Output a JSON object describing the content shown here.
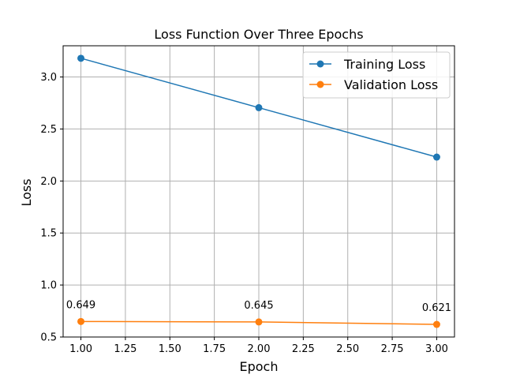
{
  "chart_data": {
    "type": "line",
    "title": "Loss Function Over Three Epochs",
    "xlabel": "Epoch",
    "ylabel": "Loss",
    "x": [
      1,
      2,
      3
    ],
    "xlim": [
      0.9,
      3.1
    ],
    "ylim": [
      0.5,
      3.3
    ],
    "xticks": [
      1.0,
      1.25,
      1.5,
      1.75,
      2.0,
      2.25,
      2.5,
      2.75,
      3.0
    ],
    "xtick_labels": [
      "1.00",
      "1.25",
      "1.50",
      "1.75",
      "2.00",
      "2.25",
      "2.50",
      "2.75",
      "3.00"
    ],
    "yticks": [
      0.5,
      1.0,
      1.5,
      2.0,
      2.5,
      3.0
    ],
    "ytick_labels": [
      "0.5",
      "1.0",
      "1.5",
      "2.0",
      "2.5",
      "3.0"
    ],
    "grid": true,
    "legend_position": "top-right",
    "series": [
      {
        "name": "Training Loss",
        "color": "#1f77b4",
        "values": [
          3.18,
          2.705,
          2.23
        ],
        "data_labels": []
      },
      {
        "name": "Validation Loss",
        "color": "#ff7f0e",
        "values": [
          0.649,
          0.645,
          0.621
        ],
        "data_labels": [
          "0.649",
          "0.645",
          "0.621"
        ]
      }
    ]
  }
}
